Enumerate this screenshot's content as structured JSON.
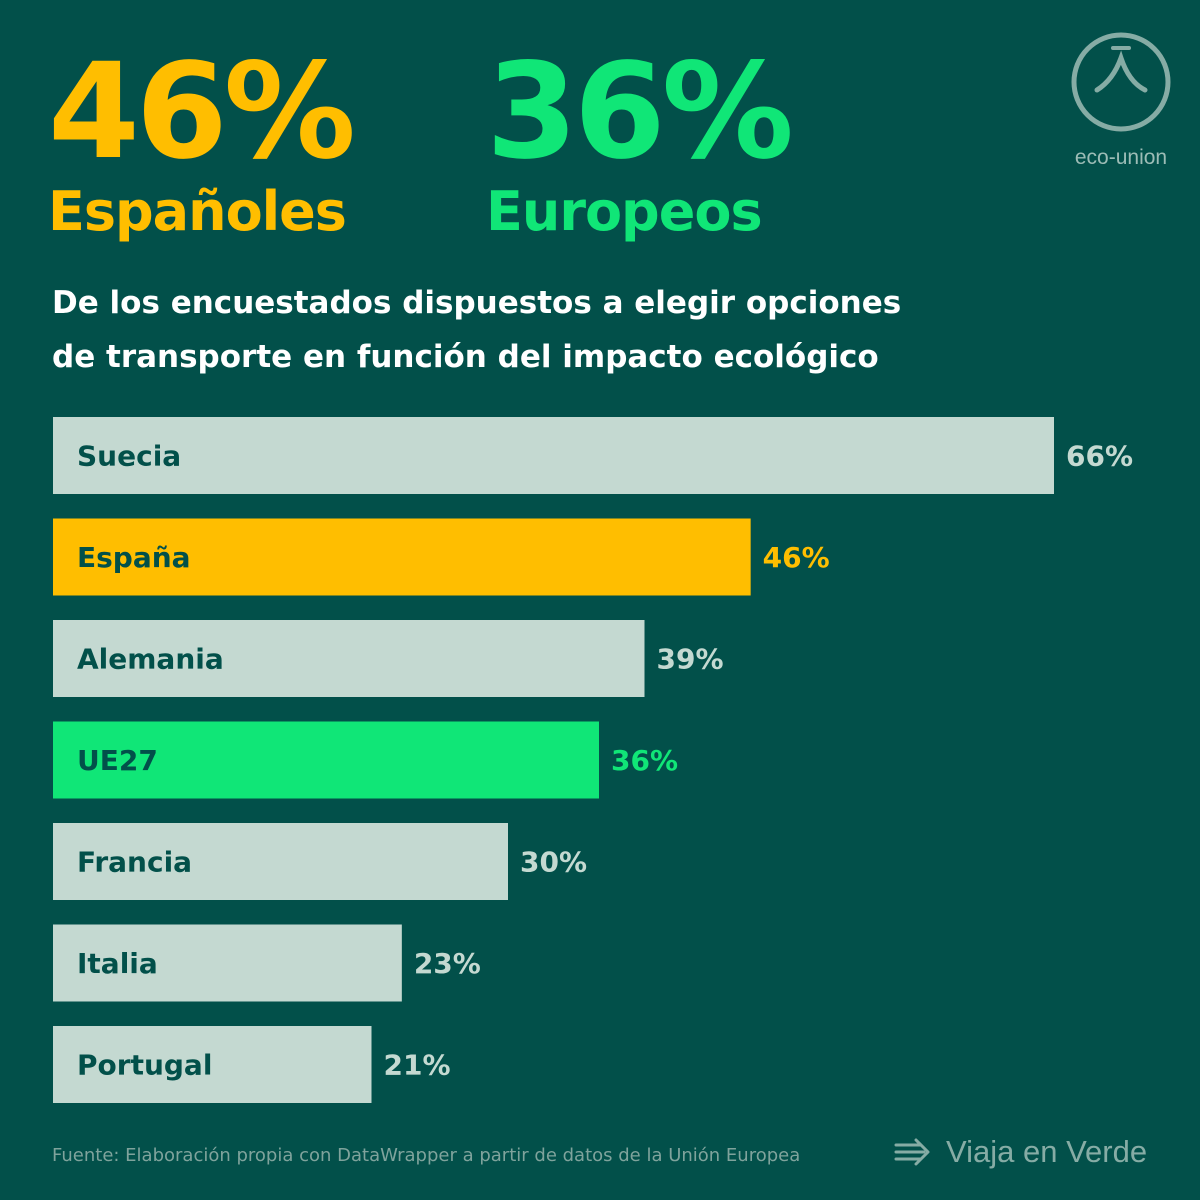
{
  "headline": {
    "spain": {
      "value": "46%",
      "label": "Españoles"
    },
    "europe": {
      "value": "36%",
      "label": "Europeos"
    }
  },
  "logo": {
    "text": "eco-union",
    "icon": "eco-union-logo-icon"
  },
  "subtitle_line1": "De los encuestados dispuestos a elegir opciones",
  "subtitle_line2": "de transporte en función del impacto ecológico",
  "colors": {
    "background": "#02504a",
    "default_bar": "#c4d9d1",
    "spain": "#ffbe00",
    "eu": "#10e677",
    "default_value_text": "#c4d9d1"
  },
  "chart_data": {
    "type": "bar",
    "orientation": "horizontal",
    "categories": [
      "Suecia",
      "España",
      "Alemania",
      "UE27",
      "Francia",
      "Italia",
      "Portugal"
    ],
    "values": [
      66,
      46,
      39,
      36,
      30,
      23,
      21
    ],
    "value_labels": [
      "66%",
      "46%",
      "39%",
      "36%",
      "30%",
      "23%",
      "21%"
    ],
    "highlight": {
      "España": "#ffbe00",
      "UE27": "#10e677"
    },
    "xlim": [
      0,
      66
    ]
  },
  "footer": {
    "source": "Fuente: Elaboración propia con DataWrapper a partir de datos de la Unión Europea",
    "brand": "Viaja en Verde",
    "brand_icon": "arrows-icon"
  }
}
